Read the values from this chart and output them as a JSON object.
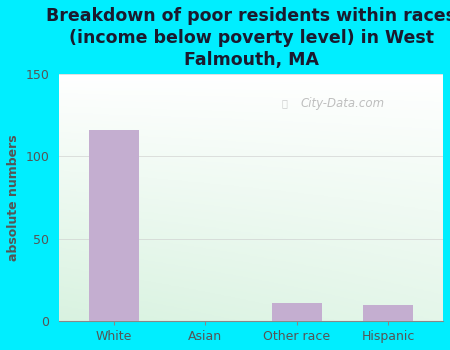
{
  "categories": [
    "White",
    "Asian",
    "Other race",
    "Hispanic"
  ],
  "values": [
    116,
    0,
    11,
    10
  ],
  "bar_color": "#c4aed0",
  "title": "Breakdown of poor residents within races\n(income below poverty level) in West\nFalmouth, MA",
  "ylabel": "absolute numbers",
  "ylim": [
    0,
    150
  ],
  "yticks": [
    0,
    50,
    100,
    150
  ],
  "title_fontsize": 12.5,
  "ylabel_fontsize": 9,
  "tick_fontsize": 9,
  "bg_outer": "#00eeff",
  "watermark": "City-Data.com",
  "grid_color": "#cccccc",
  "title_color": "#1a1a2e",
  "tick_color": "#555555"
}
